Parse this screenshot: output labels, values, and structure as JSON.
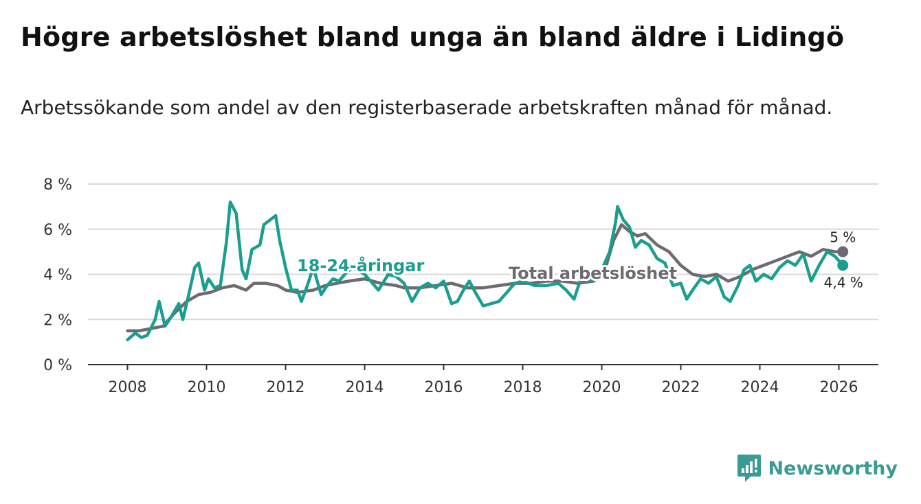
{
  "chart_data": {
    "type": "line",
    "title": "Högre arbetslöshet bland unga än bland äldre i Lidingö",
    "subtitle": "Arbetssökande som andel av den registerbaserade arbetskraften månad för månad.",
    "xlabel": "",
    "ylabel": "",
    "xlim": [
      2007.0,
      2027.0
    ],
    "ylim": [
      0,
      8
    ],
    "x_ticks": [
      2008,
      2010,
      2012,
      2014,
      2016,
      2018,
      2020,
      2022,
      2024,
      2026
    ],
    "x_tick_labels": [
      "2008",
      "2010",
      "2012",
      "2014",
      "2016",
      "2018",
      "2020",
      "2022",
      "2024",
      "2026"
    ],
    "y_ticks": [
      0,
      2,
      4,
      6,
      8
    ],
    "y_tick_labels": [
      "0 %",
      "2 %",
      "4 %",
      "6 %",
      "8 %"
    ],
    "grid": true,
    "series": [
      {
        "name": "Total arbetslöshet",
        "label": "Total arbetslöshet",
        "color": "#6d6a70",
        "end_label": "5 %",
        "points": [
          [
            2008.0,
            1.5
          ],
          [
            2008.3,
            1.5
          ],
          [
            2008.6,
            1.6
          ],
          [
            2008.9,
            1.7
          ],
          [
            2009.2,
            2.3
          ],
          [
            2009.5,
            2.8
          ],
          [
            2009.8,
            3.1
          ],
          [
            2010.1,
            3.2
          ],
          [
            2010.4,
            3.4
          ],
          [
            2010.7,
            3.5
          ],
          [
            2011.0,
            3.3
          ],
          [
            2011.2,
            3.6
          ],
          [
            2011.5,
            3.6
          ],
          [
            2011.8,
            3.5
          ],
          [
            2012.0,
            3.3
          ],
          [
            2012.3,
            3.2
          ],
          [
            2012.7,
            3.3
          ],
          [
            2013.0,
            3.5
          ],
          [
            2013.3,
            3.6
          ],
          [
            2013.6,
            3.7
          ],
          [
            2014.0,
            3.8
          ],
          [
            2014.4,
            3.6
          ],
          [
            2014.8,
            3.5
          ],
          [
            2015.0,
            3.4
          ],
          [
            2015.4,
            3.4
          ],
          [
            2015.8,
            3.5
          ],
          [
            2016.2,
            3.6
          ],
          [
            2016.6,
            3.4
          ],
          [
            2017.0,
            3.4
          ],
          [
            2017.4,
            3.5
          ],
          [
            2017.8,
            3.6
          ],
          [
            2018.2,
            3.6
          ],
          [
            2018.6,
            3.7
          ],
          [
            2019.0,
            3.7
          ],
          [
            2019.4,
            3.6
          ],
          [
            2019.8,
            3.7
          ],
          [
            2020.1,
            4.3
          ],
          [
            2020.3,
            5.5
          ],
          [
            2020.5,
            6.2
          ],
          [
            2020.7,
            5.9
          ],
          [
            2020.9,
            5.7
          ],
          [
            2021.1,
            5.8
          ],
          [
            2021.4,
            5.3
          ],
          [
            2021.7,
            5.0
          ],
          [
            2022.0,
            4.4
          ],
          [
            2022.3,
            4.0
          ],
          [
            2022.6,
            3.9
          ],
          [
            2022.9,
            4.0
          ],
          [
            2023.2,
            3.7
          ],
          [
            2023.5,
            3.9
          ],
          [
            2023.8,
            4.2
          ],
          [
            2024.1,
            4.4
          ],
          [
            2024.4,
            4.6
          ],
          [
            2024.7,
            4.8
          ],
          [
            2025.0,
            5.0
          ],
          [
            2025.3,
            4.8
          ],
          [
            2025.6,
            5.1
          ],
          [
            2025.9,
            5.0
          ],
          [
            2026.1,
            5.0
          ]
        ]
      },
      {
        "name": "18-24-åringar",
        "label": "18-24-åringar",
        "color": "#1a9e90",
        "end_label": "4,4 %",
        "points": [
          [
            2008.0,
            1.1
          ],
          [
            2008.2,
            1.4
          ],
          [
            2008.35,
            1.2
          ],
          [
            2008.5,
            1.3
          ],
          [
            2008.7,
            2.0
          ],
          [
            2008.8,
            2.8
          ],
          [
            2008.95,
            1.7
          ],
          [
            2009.1,
            2.1
          ],
          [
            2009.3,
            2.7
          ],
          [
            2009.4,
            2.0
          ],
          [
            2009.55,
            3.1
          ],
          [
            2009.7,
            4.3
          ],
          [
            2009.8,
            4.5
          ],
          [
            2009.95,
            3.3
          ],
          [
            2010.05,
            3.8
          ],
          [
            2010.2,
            3.4
          ],
          [
            2010.35,
            3.5
          ],
          [
            2010.5,
            5.4
          ],
          [
            2010.6,
            7.2
          ],
          [
            2010.75,
            6.7
          ],
          [
            2010.9,
            4.2
          ],
          [
            2011.0,
            3.8
          ],
          [
            2011.15,
            5.1
          ],
          [
            2011.35,
            5.3
          ],
          [
            2011.45,
            6.2
          ],
          [
            2011.6,
            6.4
          ],
          [
            2011.75,
            6.6
          ],
          [
            2011.85,
            5.5
          ],
          [
            2012.0,
            4.3
          ],
          [
            2012.15,
            3.3
          ],
          [
            2012.3,
            3.3
          ],
          [
            2012.4,
            2.8
          ],
          [
            2012.55,
            3.5
          ],
          [
            2012.7,
            4.3
          ],
          [
            2012.9,
            3.1
          ],
          [
            2013.05,
            3.5
          ],
          [
            2013.2,
            3.8
          ],
          [
            2013.35,
            3.7
          ],
          [
            2013.55,
            4.1
          ],
          [
            2013.7,
            4.3
          ],
          [
            2014.0,
            4.0
          ],
          [
            2014.2,
            3.6
          ],
          [
            2014.35,
            3.3
          ],
          [
            2014.6,
            4.0
          ],
          [
            2014.8,
            3.9
          ],
          [
            2015.0,
            3.6
          ],
          [
            2015.2,
            2.8
          ],
          [
            2015.4,
            3.4
          ],
          [
            2015.6,
            3.6
          ],
          [
            2015.8,
            3.4
          ],
          [
            2016.0,
            3.7
          ],
          [
            2016.2,
            2.7
          ],
          [
            2016.35,
            2.8
          ],
          [
            2016.5,
            3.3
          ],
          [
            2016.65,
            3.7
          ],
          [
            2016.8,
            3.2
          ],
          [
            2017.0,
            2.6
          ],
          [
            2017.2,
            2.7
          ],
          [
            2017.4,
            2.8
          ],
          [
            2017.6,
            3.2
          ],
          [
            2017.8,
            3.6
          ],
          [
            2018.0,
            3.7
          ],
          [
            2018.3,
            3.5
          ],
          [
            2018.6,
            3.5
          ],
          [
            2018.9,
            3.6
          ],
          [
            2019.1,
            3.3
          ],
          [
            2019.3,
            2.9
          ],
          [
            2019.45,
            3.7
          ],
          [
            2019.6,
            3.8
          ],
          [
            2019.8,
            3.7
          ],
          [
            2020.0,
            4.2
          ],
          [
            2020.2,
            5.0
          ],
          [
            2020.35,
            6.3
          ],
          [
            2020.4,
            7.0
          ],
          [
            2020.55,
            6.4
          ],
          [
            2020.7,
            6.1
          ],
          [
            2020.85,
            5.2
          ],
          [
            2021.0,
            5.5
          ],
          [
            2021.2,
            5.3
          ],
          [
            2021.4,
            4.7
          ],
          [
            2021.6,
            4.5
          ],
          [
            2021.8,
            3.5
          ],
          [
            2022.0,
            3.6
          ],
          [
            2022.15,
            2.9
          ],
          [
            2022.3,
            3.3
          ],
          [
            2022.5,
            3.8
          ],
          [
            2022.7,
            3.6
          ],
          [
            2022.9,
            3.9
          ],
          [
            2023.1,
            3.0
          ],
          [
            2023.25,
            2.8
          ],
          [
            2023.45,
            3.5
          ],
          [
            2023.6,
            4.2
          ],
          [
            2023.75,
            4.4
          ],
          [
            2023.9,
            3.7
          ],
          [
            2024.1,
            4.0
          ],
          [
            2024.3,
            3.8
          ],
          [
            2024.5,
            4.3
          ],
          [
            2024.7,
            4.6
          ],
          [
            2024.9,
            4.4
          ],
          [
            2025.1,
            4.9
          ],
          [
            2025.3,
            3.7
          ],
          [
            2025.5,
            4.4
          ],
          [
            2025.7,
            5.0
          ],
          [
            2025.9,
            4.8
          ],
          [
            2026.1,
            4.4
          ]
        ]
      }
    ]
  },
  "brand": {
    "name": "Newsworthy",
    "color": "#3a9b94"
  }
}
